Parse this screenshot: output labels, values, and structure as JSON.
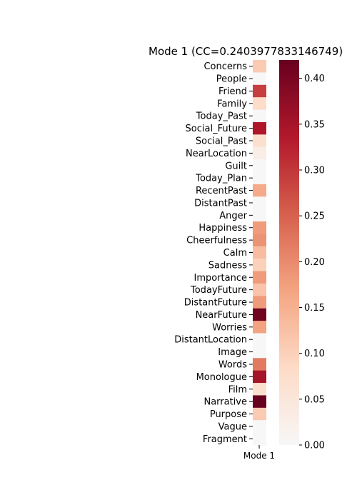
{
  "chart_data": {
    "type": "heatmap",
    "title": "Mode 1 (CC=0.2403977833146749)",
    "x_categories": [
      "Mode 1"
    ],
    "y_categories": [
      "Concerns",
      "People",
      "Friend",
      "Family",
      "Today_Past",
      "Social_Future",
      "Social_Past",
      "NearLocation",
      "Guilt",
      "Today_Plan",
      "RecentPast",
      "DistantPast",
      "Anger",
      "Happiness",
      "Cheerfulness",
      "Calm",
      "Sadness",
      "Importance",
      "TodayFuture",
      "DistantFuture",
      "NearFuture",
      "Worries",
      "DistantLocation",
      "Image",
      "Words",
      "Monologue",
      "Film",
      "Narrative",
      "Purpose",
      "Vague",
      "Fragment"
    ],
    "values": [
      0.11,
      0.0,
      0.29,
      0.08,
      0.0,
      0.34,
      0.07,
      0.03,
      0.0,
      0.0,
      0.16,
      0.0,
      0.0,
      0.18,
      0.19,
      0.13,
      0.1,
      0.18,
      0.12,
      0.18,
      0.41,
      0.17,
      0.0,
      0.0,
      0.22,
      0.35,
      0.07,
      0.42,
      0.11,
      0.0,
      0.0
    ],
    "colorbar": {
      "min": 0.0,
      "max": 0.42,
      "ticks": [
        "0.00",
        "0.05",
        "0.10",
        "0.15",
        "0.20",
        "0.25",
        "0.30",
        "0.35",
        "0.40"
      ],
      "colormap": "RdBu_r (positive half)"
    },
    "colors": [
      "#f7f7f7",
      "#fddbc7",
      "#f4a582",
      "#d6604d",
      "#b2182b",
      "#67001f"
    ]
  }
}
